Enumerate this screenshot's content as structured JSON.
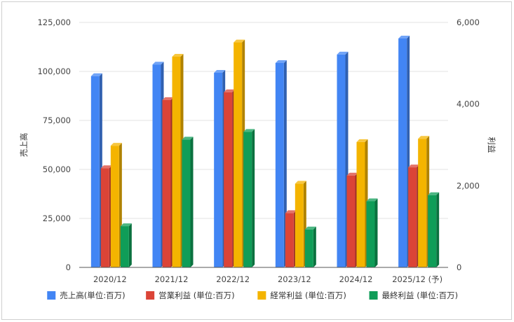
{
  "chart_data": {
    "type": "bar",
    "categories": [
      "2020/12",
      "2021/12",
      "2022/12",
      "2023/12",
      "2024/12",
      "2025/12 (予)"
    ],
    "y_left": {
      "label": "売上高",
      "ylim": [
        0,
        125000
      ],
      "ticks": [
        "0",
        "25,000",
        "50,000",
        "75,000",
        "100,000",
        "125,000"
      ],
      "tick_values": [
        0,
        25000,
        50000,
        75000,
        100000,
        125000
      ]
    },
    "y_right": {
      "label": "利益",
      "ylim": [
        0,
        6000
      ],
      "ticks": [
        "0",
        "2,000",
        "4,000",
        "6,000"
      ],
      "tick_values": [
        0,
        2000,
        4000,
        6000
      ]
    },
    "series": [
      {
        "name": "売上高(単位:百万)",
        "axis": "left",
        "color": "#4285F4",
        "values": [
          97600,
          103500,
          99300,
          104300,
          108600,
          116800
        ]
      },
      {
        "name": "営業利益 (単位:百万)",
        "axis": "right",
        "color": "#DB4437",
        "values": [
          2430,
          4100,
          4290,
          1330,
          2250,
          2450
        ]
      },
      {
        "name": "経常利益 (単位:百万)",
        "axis": "right",
        "color": "#F4B400",
        "values": [
          2980,
          5160,
          5510,
          2050,
          3070,
          3150
        ]
      },
      {
        "name": "最終利益 (単位:百万)",
        "axis": "right",
        "color": "#0F9D58",
        "values": [
          1010,
          3130,
          3320,
          930,
          1620,
          1770
        ]
      }
    ],
    "grid": true,
    "legend_position": "bottom"
  }
}
